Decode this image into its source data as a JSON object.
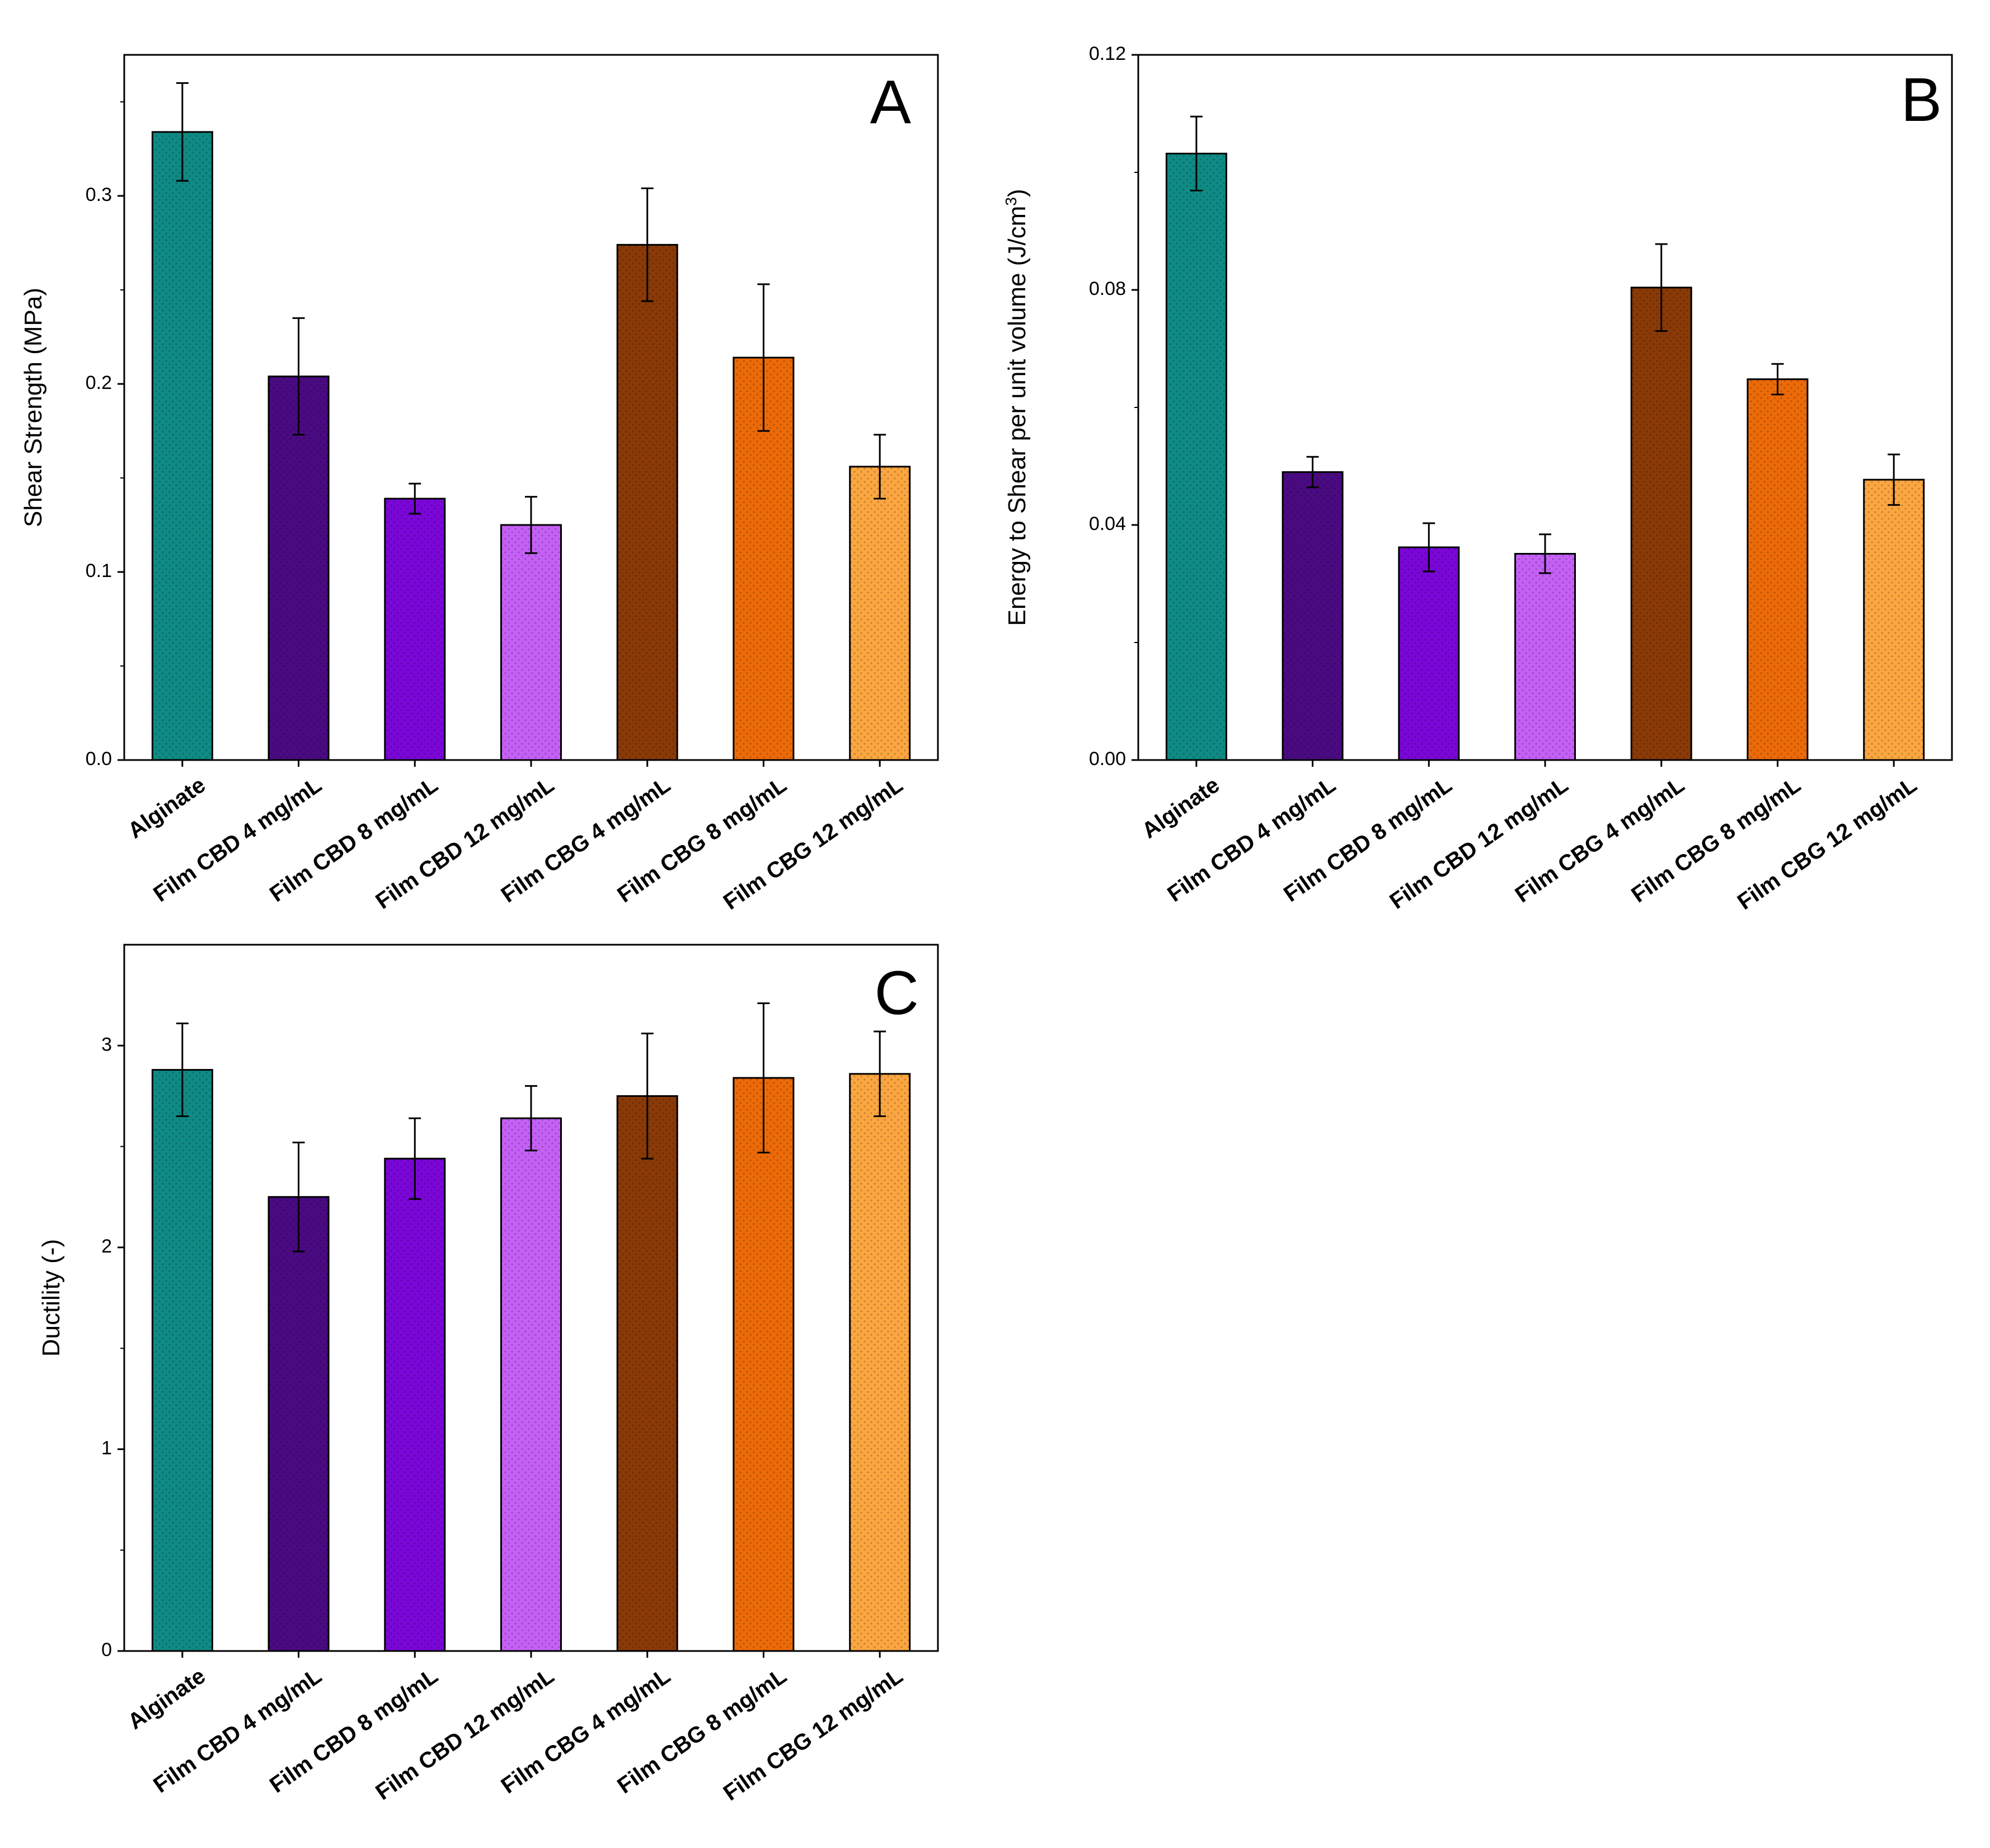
{
  "colors": {
    "Alginate": "#0f8a84",
    "Film CBD 4 mg/mL": "#4a0a82",
    "Film CBD 8 mg/mL": "#7a06d8",
    "Film CBD 12 mg/mL": "#c560f6",
    "Film CBG 4 mg/mL": "#8a3a06",
    "Film CBG 8 mg/mL": "#ec6a08",
    "Film CBG 12 mg/mL": "#fba640"
  },
  "chart_data": [
    {
      "id": "A",
      "type": "bar",
      "panel_label": "A",
      "title": "",
      "xlabel": "",
      "ylabel": "Shear Strength (MPa)",
      "ylabel_superscript": "",
      "ylabel_suffix": "",
      "ylim": [
        0,
        0.375
      ],
      "yticks": [
        0.0,
        0.1,
        0.2,
        0.3
      ],
      "ytick_labels": [
        "0.0",
        "0.1",
        "0.2",
        "0.3"
      ],
      "categories": [
        "Alginate",
        "Film CBD 4 mg/mL",
        "Film CBD 8 mg/mL",
        "Film CBD 12 mg/mL",
        "Film CBG 4 mg/mL",
        "Film CBG 8 mg/mL",
        "Film CBG 12 mg/mL"
      ],
      "values": [
        0.334,
        0.204,
        0.139,
        0.125,
        0.274,
        0.214,
        0.156
      ],
      "errors": [
        0.026,
        0.031,
        0.008,
        0.015,
        0.03,
        0.039,
        0.017
      ]
    },
    {
      "id": "B",
      "type": "bar",
      "panel_label": "B",
      "title": "",
      "xlabel": "",
      "ylabel": "Energy to Shear per unit volume (J/cm",
      "ylabel_superscript": "3",
      "ylabel_suffix": ")",
      "ylim": [
        0,
        0.12
      ],
      "yticks": [
        0.0,
        0.04,
        0.08,
        0.12
      ],
      "ytick_labels": [
        "0.00",
        "0.04",
        "0.08",
        "0.12"
      ],
      "categories": [
        "Alginate",
        "Film CBD 4 mg/mL",
        "Film CBD 8 mg/mL",
        "Film CBD 12 mg/mL",
        "Film CBG 4 mg/mL",
        "Film CBG 8 mg/mL",
        "Film CBG 12 mg/mL"
      ],
      "values": [
        0.1032,
        0.049,
        0.0362,
        0.0351,
        0.0804,
        0.0648,
        0.0477
      ],
      "errors": [
        0.0063,
        0.0026,
        0.0041,
        0.0033,
        0.0074,
        0.0026,
        0.0043
      ]
    },
    {
      "id": "C",
      "type": "bar",
      "panel_label": "C",
      "title": "",
      "xlabel": "",
      "ylabel": "Ductility (-)",
      "ylabel_superscript": "",
      "ylabel_suffix": "",
      "ylim": [
        0,
        3.5
      ],
      "yticks": [
        0,
        1,
        2,
        3
      ],
      "ytick_labels": [
        "0",
        "1",
        "2",
        "3"
      ],
      "categories": [
        "Alginate",
        "Film CBD 4 mg/mL",
        "Film CBD 8 mg/mL",
        "Film CBD 12 mg/mL",
        "Film CBG 4 mg/mL",
        "Film CBG 8 mg/mL",
        "Film CBG 12 mg/mL"
      ],
      "values": [
        2.88,
        2.25,
        2.44,
        2.64,
        2.75,
        2.84,
        2.86
      ],
      "errors": [
        0.23,
        0.27,
        0.2,
        0.16,
        0.31,
        0.37,
        0.21
      ]
    }
  ]
}
